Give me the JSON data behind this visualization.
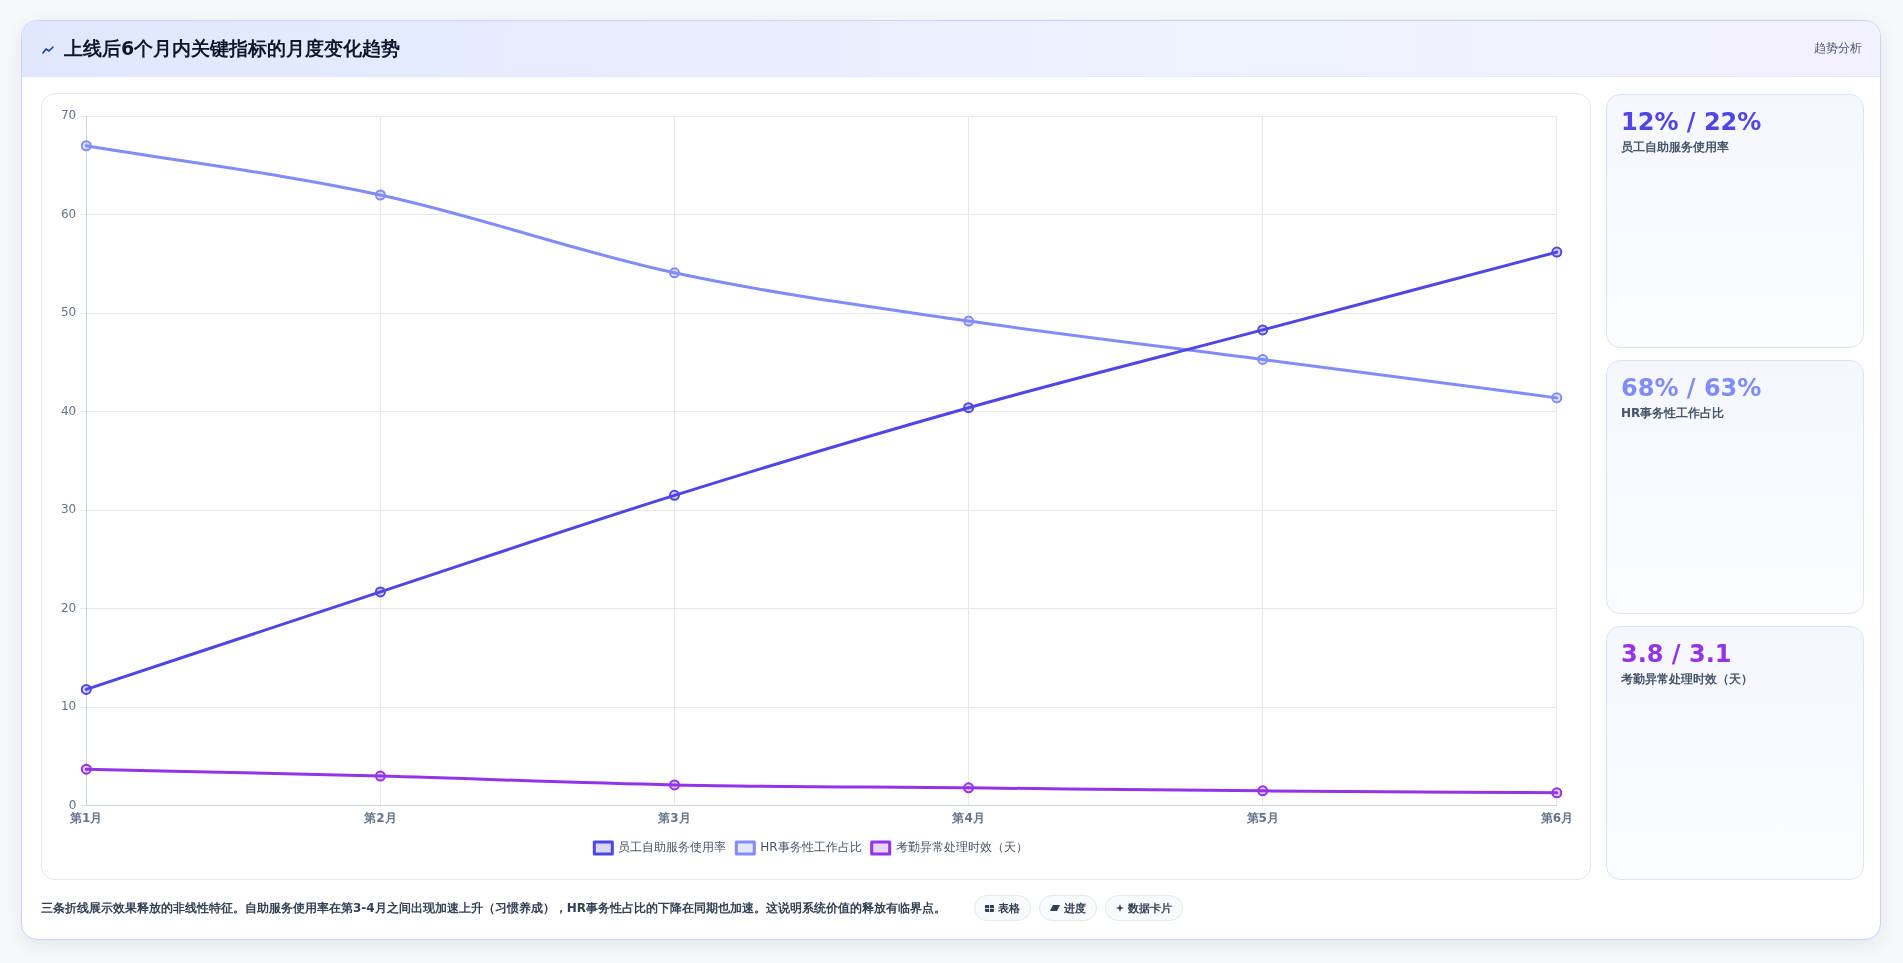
{
  "chart_data": [
    {
      "type": "line",
      "title": "上线后6个月内关键指标的月度变化趋势",
      "annotations": [
        "趋势分析",
        "三条折线展示效果释放的非线性特征。自助服务使用率在第3-4月之间出现加速上升（习惯养成），HR事务性占比的下降在同期也加速。这说明系统价值的释放有临界点。",
        "表格",
        "进度",
        "数据卡片"
      ],
      "categories": [
        "第1月",
        "第2月",
        "第3月",
        "第4月",
        "第5月",
        "第6月"
      ],
      "series": [
        {
          "name": "员工自助服务使用率",
          "color": "#4f46e5",
          "values": [
            11.8,
            21.7,
            31.5,
            40.4,
            48.3,
            56.2
          ]
        },
        {
          "name": "HR事务性工作占比",
          "color": "#818cf8",
          "values": [
            67,
            62,
            54.1,
            49.2,
            45.3,
            41.4
          ]
        },
        {
          "name": "考勤异常处理时效（天）",
          "color": "#9333ea",
          "values": [
            3.7,
            3.0,
            2.1,
            1.8,
            1.5,
            1.3
          ]
        }
      ],
      "ylim": [
        0,
        70
      ],
      "yticks": [
        0,
        10,
        20,
        30,
        40,
        50,
        60,
        70
      ],
      "grid": true,
      "legend": "bottom",
      "marker": "circle",
      "line_style": "solid"
    },
    {
      "type": "other",
      "annotations": [
        "12% / 22%",
        "员工自助服务使用率",
        "68% / 63%",
        "HR事务性工作占比",
        "3.8 / 3.1",
        "考勤异常处理时效（天）"
      ],
      "colors": [
        "#4f46e5",
        "#818cf8",
        "#9333ea"
      ]
    }
  ]
}
